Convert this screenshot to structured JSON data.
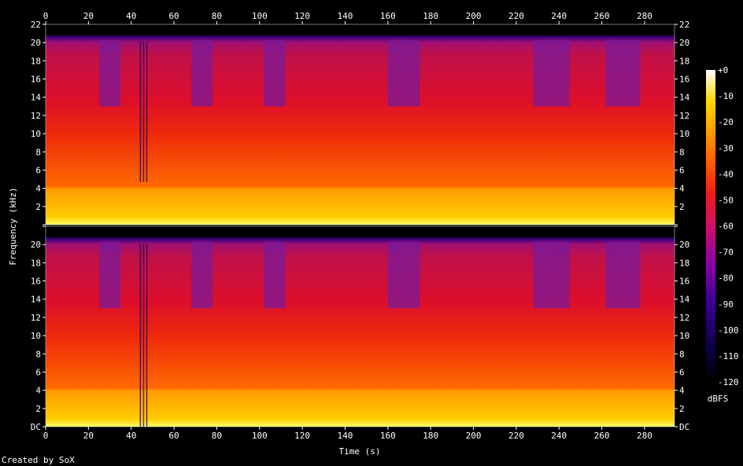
{
  "chart_data": {
    "type": "heatmap",
    "xlabel": "Time (s)",
    "ylabel": "Frequency (kHz)",
    "xlim": [
      0,
      294
    ],
    "ylim": [
      0,
      22
    ],
    "x_ticks": [
      "0",
      "20",
      "40",
      "60",
      "80",
      "100",
      "120",
      "140",
      "160",
      "180",
      "200",
      "220",
      "240",
      "260",
      "280"
    ],
    "y_ticks": [
      "DC",
      "2",
      "4",
      "6",
      "8",
      "10",
      "12",
      "14",
      "16",
      "18",
      "20",
      "22"
    ],
    "channels": 2,
    "colorbar": {
      "label": "dBFS",
      "ticks": [
        "+0",
        "-10",
        "-20",
        "-30",
        "-40",
        "-50",
        "-60",
        "-70",
        "-80",
        "-90",
        "-100",
        "-110",
        "-120"
      ],
      "range": [
        -120,
        0
      ]
    },
    "lowpass_cutoff_khz": 20,
    "quiet_sections_s": [
      [
        25,
        35
      ],
      [
        68,
        78
      ],
      [
        102,
        112
      ],
      [
        160,
        175
      ],
      [
        228,
        245
      ],
      [
        262,
        278
      ]
    ],
    "dark_streaks_s": [
      44,
      45.5,
      47
    ],
    "credit": "Created by SoX"
  }
}
